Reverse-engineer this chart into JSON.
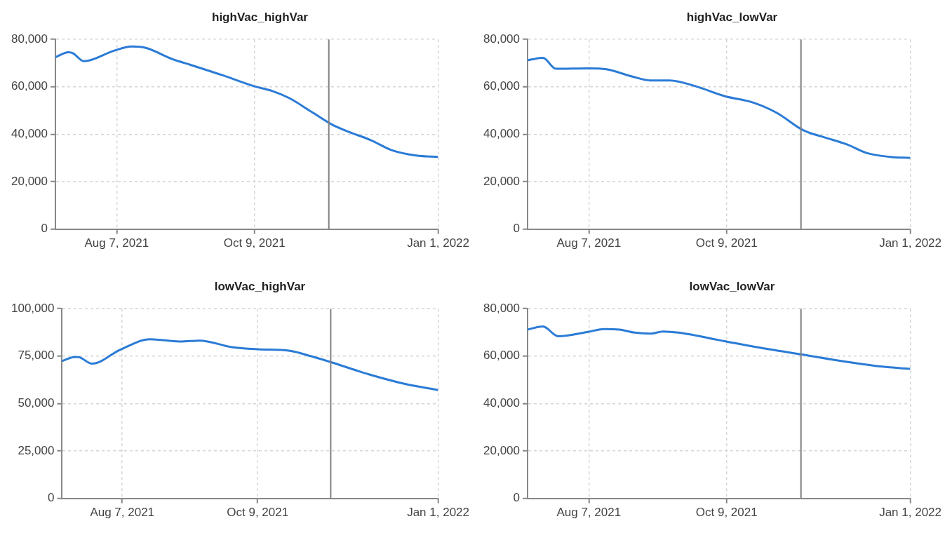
{
  "chart_data": [
    {
      "type": "line",
      "title": "highVac_highVar",
      "x": [
        "2021-07-10",
        "2021-07-16",
        "2021-07-18",
        "2021-07-23",
        "2021-08-06",
        "2021-08-14",
        "2021-08-20",
        "2021-09-02",
        "2021-09-10",
        "2021-09-25",
        "2021-10-09",
        "2021-10-17",
        "2021-10-25",
        "2021-11-04",
        "2021-11-13",
        "2021-11-20",
        "2021-12-01",
        "2021-12-11",
        "2021-12-22",
        "2022-01-01"
      ],
      "series": [
        {
          "color": "#2b7bd6",
          "values": [
            72500,
            74600,
            74200,
            70800,
            75300,
            77000,
            76500,
            71500,
            69200,
            64700,
            60200,
            58300,
            55200,
            49500,
            44300,
            41400,
            37600,
            33200,
            31000,
            30400
          ]
        }
      ],
      "xlim": [
        "2021-07-10",
        "2022-01-01"
      ],
      "xticks": [
        {
          "value": "2021-08-07",
          "label": "Aug 7, 2021"
        },
        {
          "value": "2021-10-09",
          "label": "Oct 9, 2021"
        },
        {
          "value": "2022-01-01",
          "label": "Jan 1, 2022"
        }
      ],
      "ylim": [
        0,
        80000
      ],
      "yticks": [
        {
          "value": 0,
          "label": "0"
        },
        {
          "value": 20000,
          "label": "20,000"
        },
        {
          "value": 40000,
          "label": "40,000"
        },
        {
          "value": 60000,
          "label": "60,000"
        },
        {
          "value": 80000,
          "label": "80,000"
        }
      ],
      "grid": true,
      "marker": "none",
      "ref_lines": [
        {
          "axis": "x",
          "value": "2021-11-12",
          "color": "#808080"
        }
      ]
    },
    {
      "type": "line",
      "title": "highVac_lowVar",
      "x": [
        "2021-07-10",
        "2021-07-17",
        "2021-07-23",
        "2021-08-07",
        "2021-08-15",
        "2021-08-27",
        "2021-09-04",
        "2021-09-13",
        "2021-09-25",
        "2021-10-08",
        "2021-10-21",
        "2021-11-01",
        "2021-11-13",
        "2021-11-23",
        "2021-12-03",
        "2021-12-12",
        "2021-12-23",
        "2022-01-01"
      ],
      "series": [
        {
          "color": "#2b7bd6",
          "values": [
            71200,
            72200,
            67600,
            67800,
            67400,
            64300,
            62700,
            62700,
            60200,
            56100,
            53400,
            49000,
            41700,
            38600,
            35700,
            32100,
            30400,
            30000
          ]
        }
      ],
      "xlim": [
        "2021-07-10",
        "2022-01-01"
      ],
      "xticks": [
        {
          "value": "2021-08-07",
          "label": "Aug 7, 2021"
        },
        {
          "value": "2021-10-09",
          "label": "Oct 9, 2021"
        },
        {
          "value": "2022-01-01",
          "label": "Jan 1, 2022"
        }
      ],
      "ylim": [
        0,
        80000
      ],
      "yticks": [
        {
          "value": 0,
          "label": "0"
        },
        {
          "value": 20000,
          "label": "20,000"
        },
        {
          "value": 40000,
          "label": "40,000"
        },
        {
          "value": 60000,
          "label": "60,000"
        },
        {
          "value": 80000,
          "label": "80,000"
        }
      ],
      "grid": true,
      "marker": "none",
      "ref_lines": [
        {
          "axis": "x",
          "value": "2021-11-12",
          "color": "#808080"
        }
      ]
    },
    {
      "type": "line",
      "title": "lowVac_highVar",
      "x": [
        "2021-07-10",
        "2021-07-16",
        "2021-07-18",
        "2021-07-24",
        "2021-08-06",
        "2021-08-20",
        "2021-09-03",
        "2021-09-12",
        "2021-09-27",
        "2021-10-09",
        "2021-10-24",
        "2021-11-03",
        "2021-11-13",
        "2021-11-30",
        "2021-12-17",
        "2022-01-01"
      ],
      "series": [
        {
          "color": "#2b7bd6",
          "values": [
            72400,
            74600,
            74400,
            71000,
            78300,
            83900,
            82700,
            83200,
            79700,
            78600,
            77800,
            74900,
            71500,
            65300,
            60200,
            57100
          ]
        }
      ],
      "xlim": [
        "2021-07-10",
        "2022-01-01"
      ],
      "xticks": [
        {
          "value": "2021-08-07",
          "label": "Aug 7, 2021"
        },
        {
          "value": "2021-10-09",
          "label": "Oct 9, 2021"
        },
        {
          "value": "2022-01-01",
          "label": "Jan 1, 2022"
        }
      ],
      "ylim": [
        0,
        100000
      ],
      "yticks": [
        {
          "value": 0,
          "label": "0"
        },
        {
          "value": 25000,
          "label": "25,000"
        },
        {
          "value": 50000,
          "label": "50,000"
        },
        {
          "value": 75000,
          "label": "75,000"
        },
        {
          "value": 100000,
          "label": "100,000"
        }
      ],
      "grid": true,
      "marker": "none",
      "ref_lines": [
        {
          "axis": "x",
          "value": "2021-11-12",
          "color": "#808080"
        }
      ]
    },
    {
      "type": "line",
      "title": "lowVac_lowVar",
      "x": [
        "2021-07-10",
        "2021-07-17",
        "2021-07-24",
        "2021-08-07",
        "2021-08-14",
        "2021-08-21",
        "2021-08-28",
        "2021-09-04",
        "2021-09-10",
        "2021-09-17",
        "2021-10-08",
        "2021-10-29",
        "2021-11-13",
        "2021-12-02",
        "2021-12-16",
        "2022-01-01"
      ],
      "series": [
        {
          "color": "#2b7bd6",
          "values": [
            71200,
            72500,
            68400,
            70300,
            71400,
            71200,
            69900,
            69500,
            70400,
            69900,
            66300,
            62800,
            60600,
            57700,
            55900,
            54600
          ]
        }
      ],
      "xlim": [
        "2021-07-10",
        "2022-01-01"
      ],
      "xticks": [
        {
          "value": "2021-08-07",
          "label": "Aug 7, 2021"
        },
        {
          "value": "2021-10-09",
          "label": "Oct 9, 2021"
        },
        {
          "value": "2022-01-01",
          "label": "Jan 1, 2022"
        }
      ],
      "ylim": [
        0,
        80000
      ],
      "yticks": [
        {
          "value": 0,
          "label": "0"
        },
        {
          "value": 20000,
          "label": "20,000"
        },
        {
          "value": 40000,
          "label": "40,000"
        },
        {
          "value": 60000,
          "label": "60,000"
        },
        {
          "value": 80000,
          "label": "80,000"
        }
      ],
      "grid": true,
      "marker": "none",
      "ref_lines": [
        {
          "axis": "x",
          "value": "2021-11-12",
          "color": "#808080"
        }
      ]
    }
  ]
}
